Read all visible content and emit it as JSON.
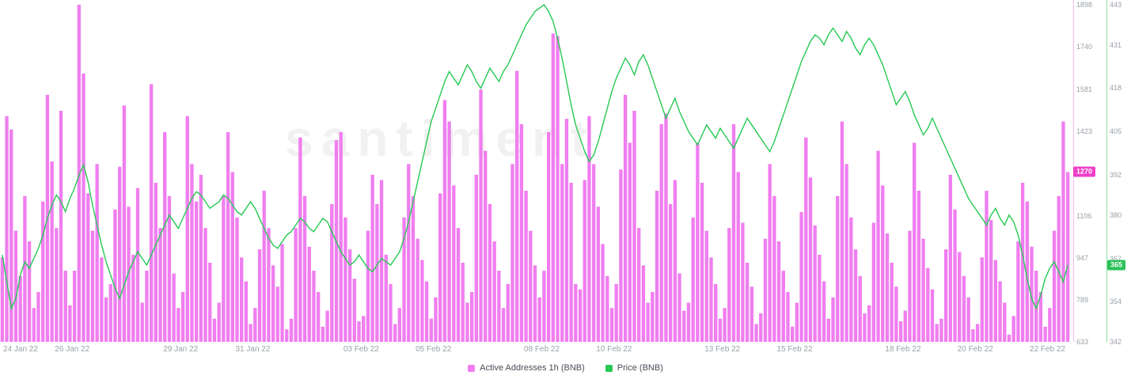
{
  "watermark": "santiment",
  "legend": {
    "items": [
      {
        "label": "Active Addresses 1h (BNB)",
        "color": "#F07EF0"
      },
      {
        "label": "Price (BNB)",
        "color": "#26C953"
      }
    ]
  },
  "chart_data": {
    "type": "mixed",
    "title": "",
    "xlabel": "",
    "ylabel_left": "",
    "grid": "off",
    "legend_position": "bottom-center",
    "x_ticks": [
      {
        "label": "24 Jan 22",
        "index": 0
      },
      {
        "label": "26 Jan 22",
        "index": 16
      },
      {
        "label": "29 Jan 22",
        "index": 40
      },
      {
        "label": "31 Jan 22",
        "index": 56
      },
      {
        "label": "03 Feb 22",
        "index": 80
      },
      {
        "label": "05 Feb 22",
        "index": 96
      },
      {
        "label": "08 Feb 22",
        "index": 120
      },
      {
        "label": "10 Feb 22",
        "index": 136
      },
      {
        "label": "13 Feb 22",
        "index": 160
      },
      {
        "label": "15 Feb 22",
        "index": 176
      },
      {
        "label": "18 Feb 22",
        "index": 200
      },
      {
        "label": "20 Feb 22",
        "index": 216
      },
      {
        "label": "22 Feb 22",
        "index": 232
      }
    ],
    "bar_axis": {
      "min": 633,
      "max": 1898,
      "ticks": [
        1898,
        1740,
        1581,
        1423,
        1106,
        947,
        789,
        633
      ],
      "color": "#F07EF0",
      "badge_color": "#EE3FC8",
      "current": {
        "value": 1270
      }
    },
    "price_axis": {
      "min": 342,
      "max": 443,
      "ticks": [
        443,
        431,
        418,
        405,
        392,
        380,
        367,
        354,
        342
      ],
      "color": "#26C953",
      "badge_color": "#2BC158",
      "current": {
        "value": 365
      }
    },
    "series": [
      {
        "name": "Active Addresses 1h (BNB)",
        "type": "bar",
        "color": "#F07EF0",
        "values": [
          950,
          1480,
          1430,
          1050,
          880,
          1180,
          1010,
          760,
          820,
          1160,
          1560,
          1310,
          1060,
          1500,
          900,
          770,
          900,
          1898,
          1640,
          1190,
          1050,
          1300,
          950,
          800,
          850,
          1130,
          1290,
          1520,
          1140,
          960,
          1210,
          780,
          900,
          1600,
          1230,
          1060,
          1420,
          1180,
          890,
          760,
          820,
          1480,
          1300,
          1160,
          1260,
          1060,
          930,
          720,
          780,
          1180,
          1420,
          1270,
          1100,
          950,
          860,
          700,
          760,
          980,
          1200,
          1060,
          920,
          840,
          1000,
          680,
          720,
          1060,
          1400,
          1180,
          990,
          900,
          820,
          690,
          750,
          1150,
          1390,
          1420,
          1100,
          980,
          870,
          710,
          730,
          1050,
          1260,
          1150,
          1240,
          960,
          850,
          700,
          760,
          1100,
          1300,
          1180,
          1020,
          940,
          860,
          720,
          800,
          1190,
          1540,
          1460,
          1220,
          1060,
          930,
          780,
          820,
          1260,
          1580,
          1350,
          1150,
          1010,
          900,
          760,
          850,
          1300,
          1650,
          1450,
          1200,
          1050,
          920,
          800,
          900,
          1420,
          1790,
          1780,
          1300,
          1470,
          1230,
          850,
          830,
          1240,
          1480,
          1300,
          1140,
          1000,
          880,
          760,
          850,
          1280,
          1560,
          1380,
          1500,
          1060,
          920,
          780,
          820,
          1200,
          1450,
          1490,
          1150,
          1240,
          890,
          750,
          780,
          1100,
          1380,
          1230,
          1050,
          950,
          850,
          720,
          760,
          1060,
          1450,
          1270,
          1080,
          930,
          840,
          700,
          740,
          1020,
          1300,
          1180,
          1010,
          900,
          820,
          690,
          780,
          1120,
          1400,
          1250,
          1070,
          960,
          860,
          720,
          800,
          1180,
          1460,
          1300,
          1100,
          980,
          880,
          740,
          770,
          1080,
          1350,
          1220,
          1040,
          930,
          840,
          710,
          750,
          1050,
          1380,
          1200,
          1020,
          910,
          830,
          700,
          720,
          980,
          1260,
          1130,
          970,
          880,
          800,
          680,
          700,
          950,
          1200,
          1090,
          940,
          860,
          780,
          660,
          730,
          1010,
          1230,
          1160,
          990,
          900,
          820,
          690,
          760,
          1050,
          1180,
          1460,
          1270
        ]
      },
      {
        "name": "Price (BNB)",
        "type": "line",
        "color": "#26C953",
        "values": [
          368,
          360,
          352,
          355,
          362,
          366,
          364,
          367,
          370,
          374,
          379,
          383,
          386,
          384,
          381,
          385,
          388,
          392,
          395,
          390,
          383,
          377,
          371,
          366,
          362,
          358,
          355,
          359,
          363,
          366,
          369,
          367,
          365,
          368,
          371,
          374,
          377,
          380,
          378,
          376,
          379,
          382,
          385,
          387,
          386,
          384,
          382,
          383,
          384,
          386,
          385,
          383,
          381,
          380,
          382,
          384,
          382,
          379,
          376,
          373,
          371,
          370,
          372,
          374,
          375,
          377,
          379,
          378,
          376,
          375,
          377,
          379,
          378,
          375,
          372,
          369,
          367,
          365,
          366,
          368,
          366,
          364,
          363,
          365,
          367,
          366,
          365,
          367,
          369,
          373,
          378,
          384,
          390,
          396,
          402,
          408,
          412,
          416,
          420,
          423,
          421,
          419,
          422,
          425,
          423,
          420,
          418,
          421,
          424,
          422,
          420,
          423,
          425,
          428,
          431,
          434,
          437,
          439,
          441,
          442,
          443,
          441,
          438,
          433,
          427,
          420,
          413,
          407,
          403,
          399,
          396,
          398,
          402,
          407,
          412,
          417,
          421,
          424,
          427,
          425,
          422,
          426,
          428,
          425,
          421,
          417,
          413,
          409,
          412,
          415,
          411,
          408,
          405,
          403,
          401,
          404,
          407,
          405,
          403,
          406,
          404,
          402,
          400,
          403,
          406,
          409,
          407,
          405,
          403,
          401,
          399,
          402,
          406,
          410,
          414,
          418,
          422,
          426,
          429,
          432,
          434,
          433,
          431,
          434,
          436,
          434,
          432,
          435,
          433,
          430,
          428,
          431,
          433,
          431,
          428,
          425,
          421,
          417,
          413,
          415,
          417,
          414,
          410,
          407,
          404,
          406,
          409,
          406,
          403,
          400,
          397,
          394,
          391,
          388,
          385,
          383,
          381,
          379,
          377,
          380,
          382,
          379,
          377,
          380,
          378,
          374,
          368,
          361,
          355,
          352,
          356,
          361,
          364,
          366,
          363,
          360,
          365
        ]
      }
    ]
  }
}
